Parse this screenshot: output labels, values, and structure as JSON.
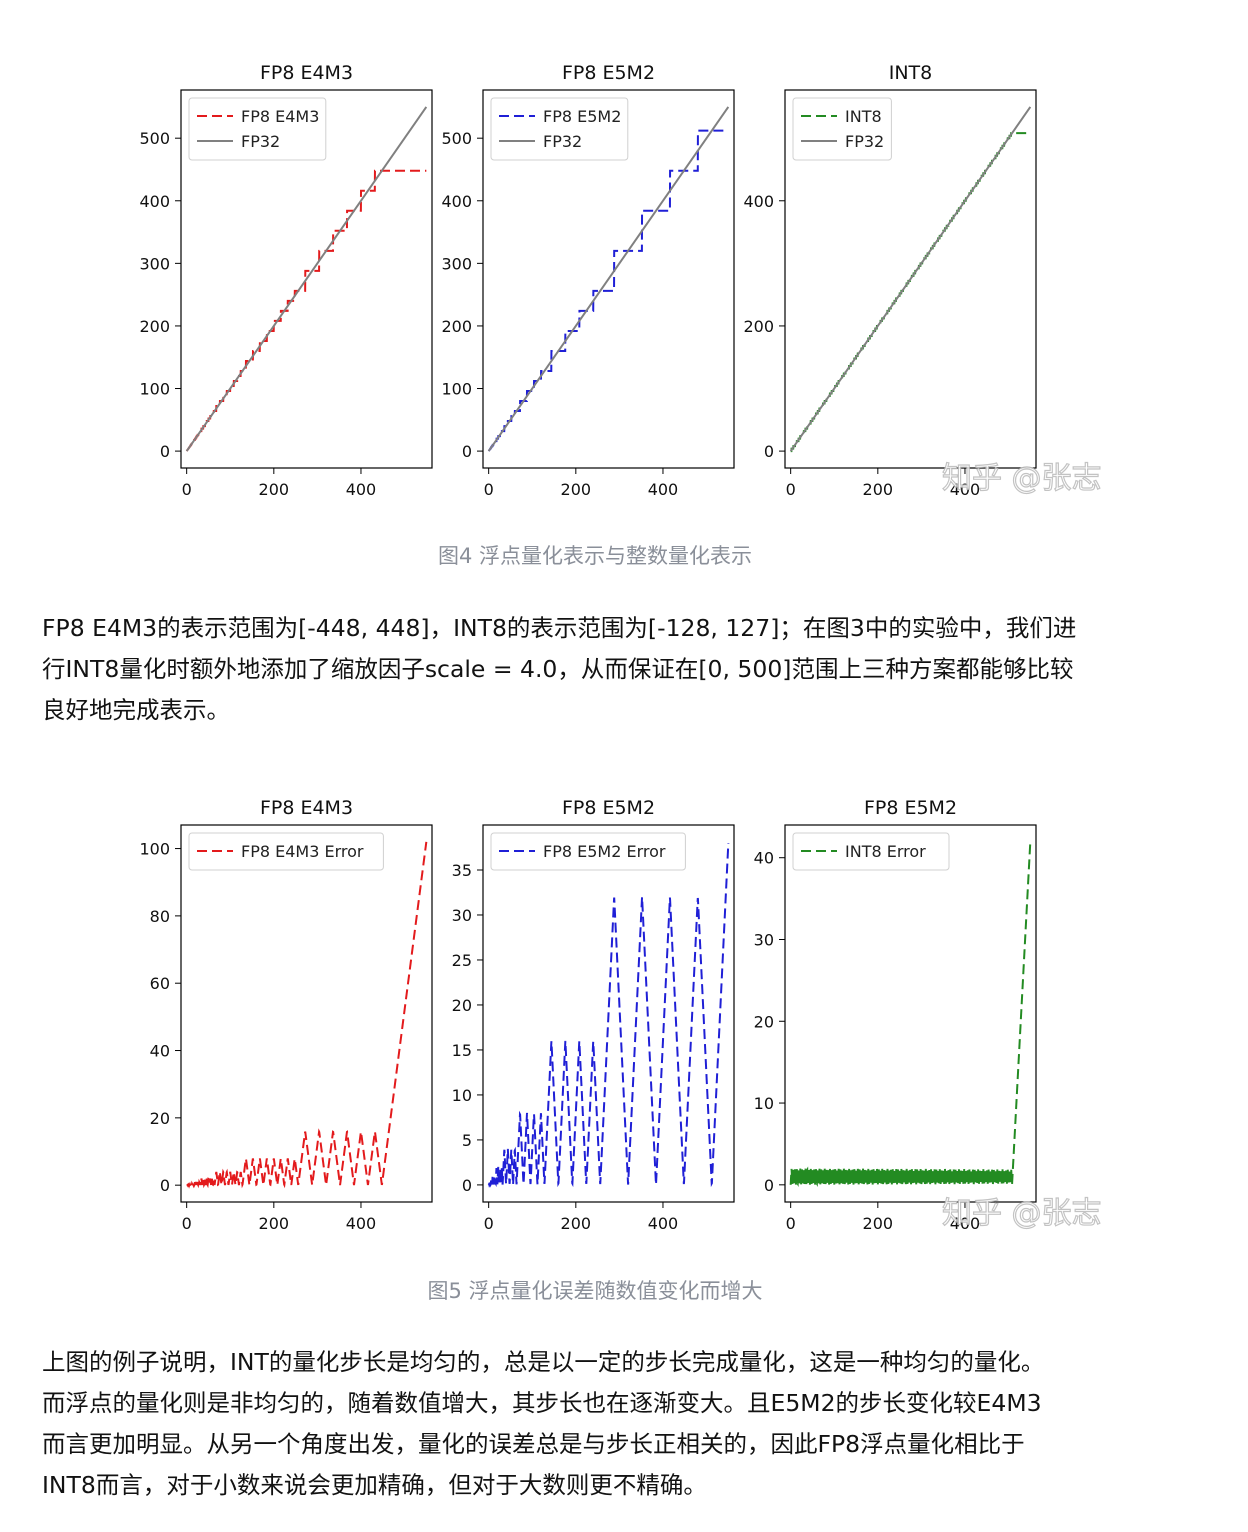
{
  "figure1": {
    "caption": "图4 浮点量化表示与整数量化表示",
    "watermark": "知乎 @张志",
    "charts": [
      {
        "title": "FP8 E4M3",
        "legend": [
          {
            "label": "FP8 E4M3",
            "color": "#e31a1c",
            "style": "dashed"
          },
          {
            "label": "FP32",
            "color": "#808080",
            "style": "solid"
          }
        ]
      },
      {
        "title": "FP8 E5M2",
        "legend": [
          {
            "label": "FP8 E5M2",
            "color": "#1f1fd6",
            "style": "dashed"
          },
          {
            "label": "FP32",
            "color": "#808080",
            "style": "solid"
          }
        ]
      },
      {
        "title": "INT8",
        "legend": [
          {
            "label": "INT8",
            "color": "#238b22",
            "style": "dashed"
          },
          {
            "label": "FP32",
            "color": "#808080",
            "style": "solid"
          }
        ]
      }
    ]
  },
  "paragraph1": [
    "FP8 E4M3的表示范围为[-448, 448]，INT8的表示范围为[-128, 127]；在图3中的实验中，我们进",
    "行INT8量化时额外地添加了缩放因子scale = 4.0，从而保证在[0, 500]范围上三种方案都能够比较",
    "良好地完成表示。"
  ],
  "figure2": {
    "caption": "图5 浮点量化误差随数值变化而增大",
    "watermark": "知乎 @张志",
    "charts": [
      {
        "title": "FP8 E4M3",
        "legend": [
          {
            "label": "FP8 E4M3 Error",
            "color": "#e31a1c",
            "style": "dashed"
          }
        ]
      },
      {
        "title": "FP8 E5M2",
        "legend": [
          {
            "label": "FP8 E5M2 Error",
            "color": "#1f1fd6",
            "style": "dashed"
          }
        ]
      },
      {
        "title": "FP8 E5M2",
        "legend": [
          {
            "label": "INT8 Error",
            "color": "#238b22",
            "style": "dashed"
          }
        ]
      }
    ]
  },
  "paragraph2": [
    "上图的例子说明，INT的量化步长是均匀的，总是以一定的步长完成量化，这是一种均匀的量化。",
    "而浮点的量化则是非均匀的，随着数值增大，其步长也在逐渐变大。且E5M2的步长变化较E4M3",
    "而言更加明显。从另一个角度出发，量化的误差总是与步长正相关的，因此FP8浮点量化相比于",
    "INT8而言，对于小数来说会更加精确，但对于大数则更不精确。"
  ],
  "chart_data": [
    {
      "type": "line",
      "title": "FP8 E4M3",
      "xlim": [
        -13,
        563
      ],
      "ylim": [
        -27,
        577
      ],
      "xticks": [
        0,
        200,
        400
      ],
      "yticks": [
        0,
        100,
        200,
        300,
        400,
        500
      ],
      "series": [
        {
          "name": "FP8 E4M3",
          "kind": "quantized",
          "format": "e4m3",
          "max": 448,
          "scale": 1,
          "x_range": [
            0,
            550
          ]
        },
        {
          "name": "FP32",
          "kind": "identity",
          "x_range": [
            0,
            550
          ]
        }
      ]
    },
    {
      "type": "line",
      "title": "FP8 E5M2",
      "xlim": [
        -13,
        563
      ],
      "ylim": [
        -27,
        577
      ],
      "xticks": [
        0,
        200,
        400
      ],
      "yticks": [
        0,
        100,
        200,
        300,
        400,
        500
      ],
      "series": [
        {
          "name": "FP8 E5M2",
          "kind": "quantized",
          "format": "e5m2",
          "max": 512,
          "scale": 1,
          "x_range": [
            0,
            550
          ]
        },
        {
          "name": "FP32",
          "kind": "identity",
          "x_range": [
            0,
            550
          ]
        }
      ]
    },
    {
      "type": "line",
      "title": "INT8",
      "xlim": [
        -13,
        563
      ],
      "ylim": [
        -27,
        577
      ],
      "xticks": [
        0,
        200,
        400
      ],
      "yticks": [
        0,
        200,
        400
      ],
      "yticks_left": [
        0,
        100,
        200,
        300,
        400,
        500
      ],
      "series": [
        {
          "name": "INT8",
          "kind": "quantized",
          "format": "int8",
          "max": 508,
          "scale": 4.0,
          "x_range": [
            0,
            550
          ]
        },
        {
          "name": "FP32",
          "kind": "identity",
          "x_range": [
            0,
            550
          ]
        }
      ]
    },
    {
      "type": "line",
      "title": "FP8 E4M3",
      "xlim": [
        -13,
        563
      ],
      "ylim": [
        -5,
        107
      ],
      "xticks": [
        0,
        200,
        400
      ],
      "yticks": [
        0,
        20,
        40,
        60,
        80,
        100
      ],
      "series": [
        {
          "name": "FP8 E4M3 Error",
          "kind": "error",
          "format": "e4m3",
          "max": 448,
          "scale": 1,
          "x_range": [
            0,
            550
          ]
        }
      ]
    },
    {
      "type": "line",
      "title": "FP8 E5M2",
      "xlim": [
        -13,
        563
      ],
      "ylim": [
        -1.9,
        40
      ],
      "xticks": [
        0,
        200,
        400
      ],
      "yticks": [
        0,
        5,
        10,
        15,
        20,
        25,
        30,
        35
      ],
      "series": [
        {
          "name": "FP8 E5M2 Error",
          "kind": "error",
          "format": "e5m2",
          "max": 512,
          "scale": 1,
          "x_range": [
            0,
            550
          ]
        }
      ]
    },
    {
      "type": "line",
      "title": "FP8 E5M2",
      "xlim": [
        -13,
        563
      ],
      "ylim": [
        -2.1,
        44
      ],
      "xticks": [
        0,
        200,
        400
      ],
      "yticks": [
        0,
        10,
        20,
        30,
        40
      ],
      "series": [
        {
          "name": "INT8 Error",
          "kind": "error",
          "format": "int8",
          "max": 508,
          "scale": 4.0,
          "x_range": [
            0,
            550
          ]
        }
      ]
    }
  ]
}
